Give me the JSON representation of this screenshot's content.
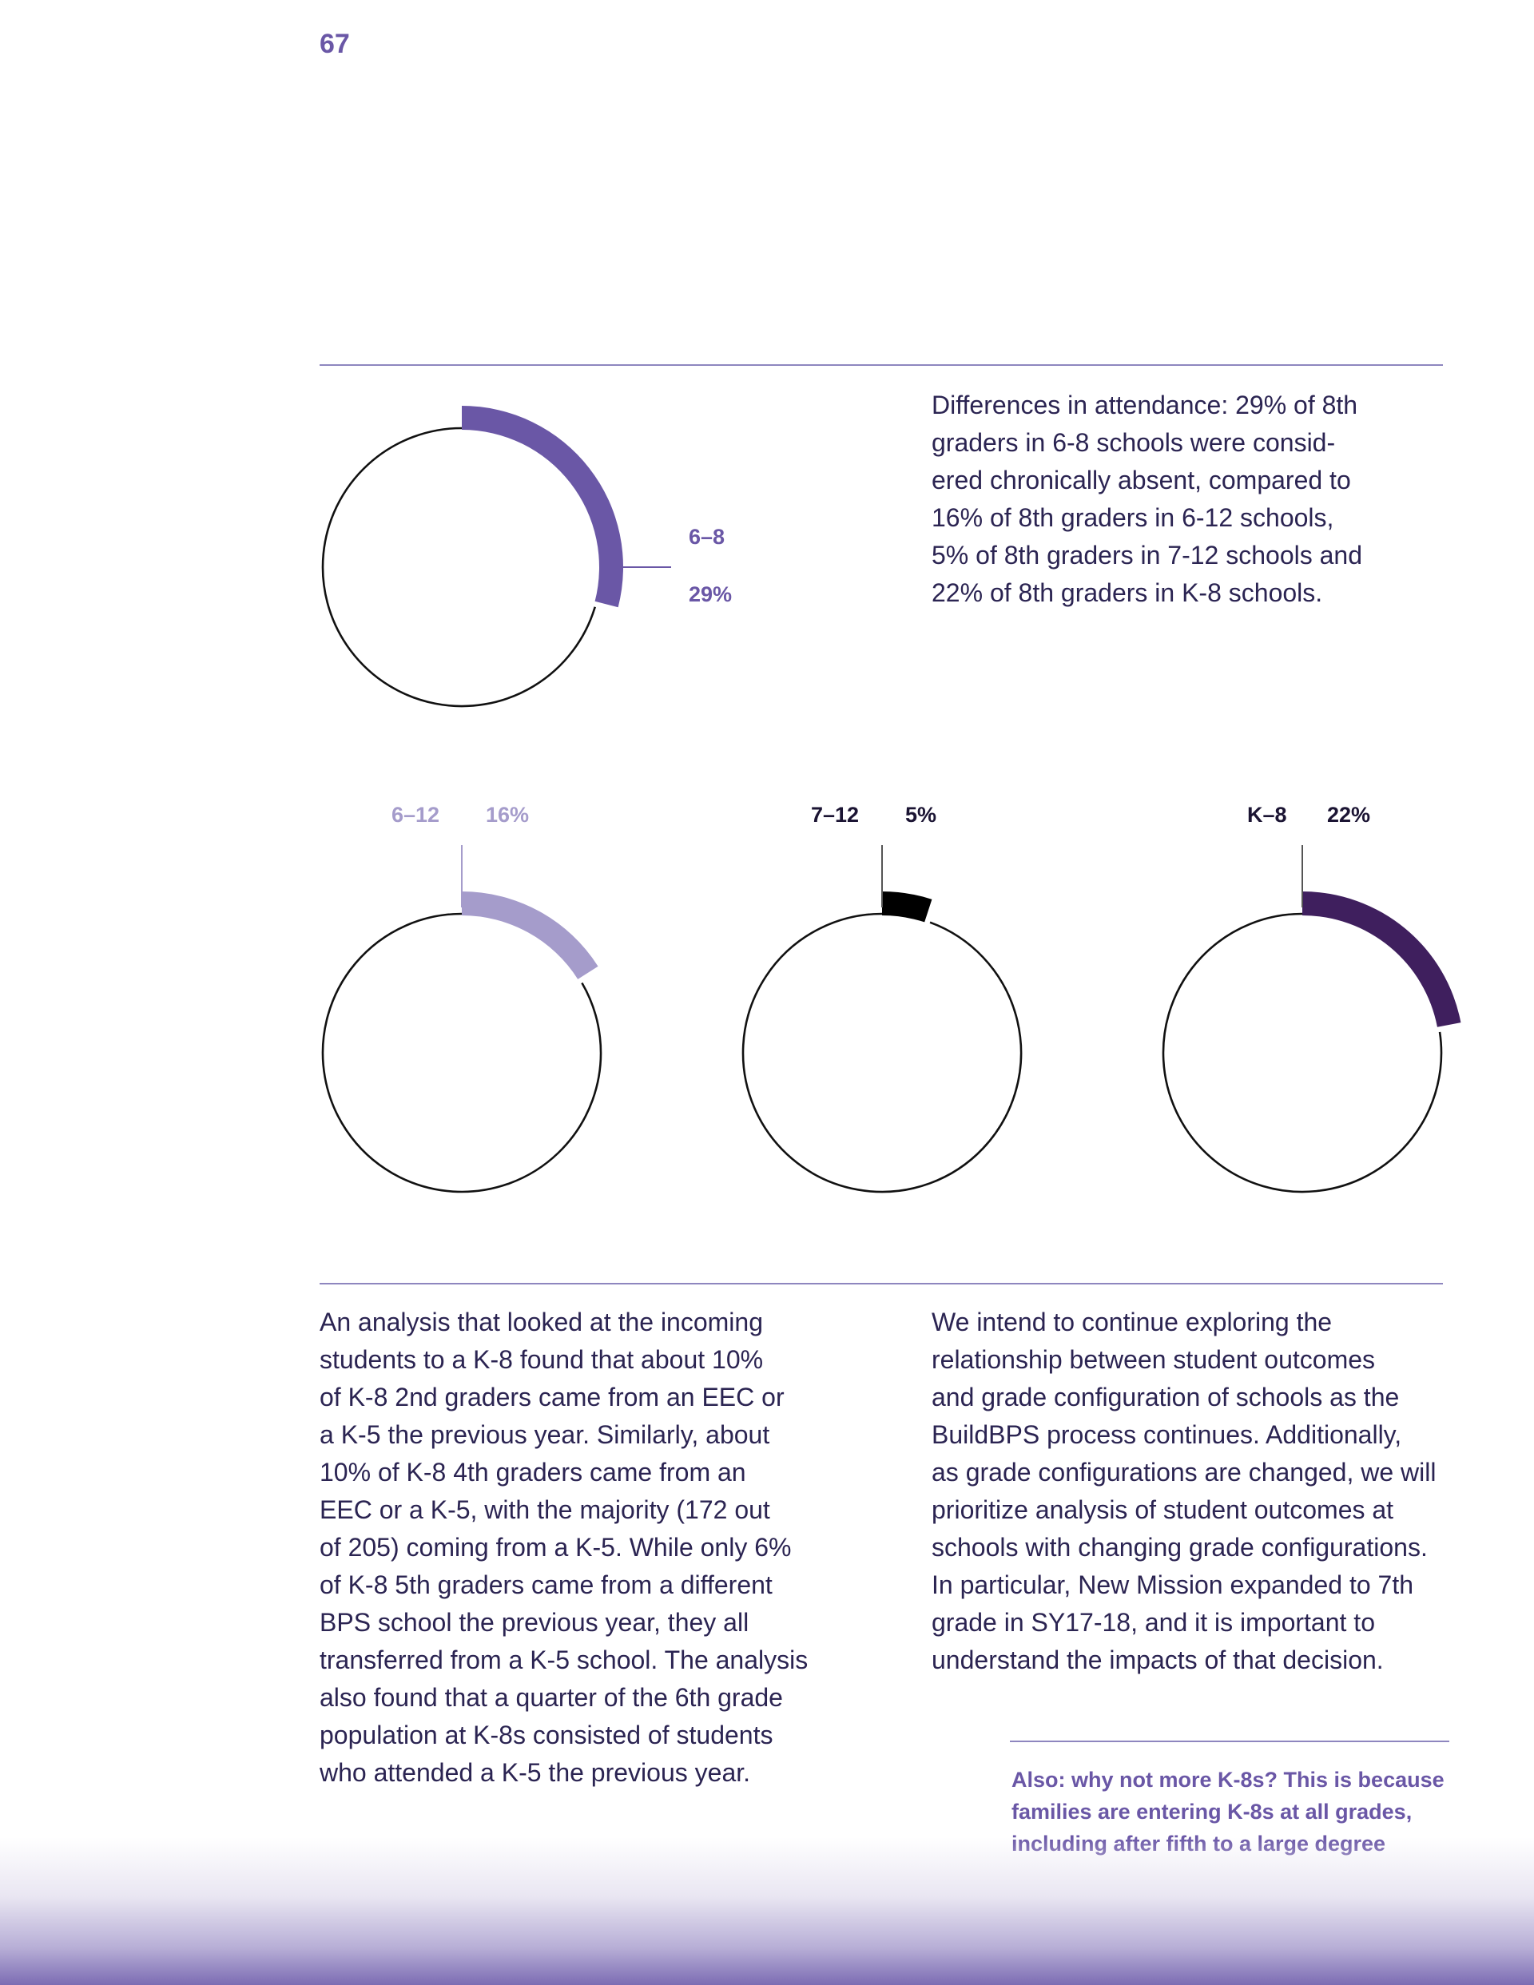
{
  "page": {
    "number": "67"
  },
  "intro": {
    "text": "Differences in attendance: 29% of 8th\ngraders in 6-8 schools were consid-\nered chronically absent, compared to\n16% of 8th graders in 6-12 schools,\n5% of 8th graders in 7-12 schools and\n22% of 8th graders in K-8 schools."
  },
  "chart_data": [
    {
      "type": "pie",
      "category": "6–8",
      "label": "29%",
      "value": 29,
      "color": "#6a57a6"
    },
    {
      "type": "pie",
      "category": "6–12",
      "label": "16%",
      "value": 16,
      "color": "#a59ccb"
    },
    {
      "type": "pie",
      "category": "7–12",
      "label": "5%",
      "value": 5,
      "color": "#000000"
    },
    {
      "type": "pie",
      "category": "K–8",
      "label": "22%",
      "value": 22,
      "color": "#3f1f5e"
    }
  ],
  "columns": {
    "left": "An analysis that looked at the incoming\nstudents to a K-8 found that about 10%\nof K-8 2nd graders came from an EEC or\na K-5 the previous year. Similarly, about\n10% of K-8 4th graders came from an\nEEC or a K-5, with the majority (172 out\nof 205) coming from a K-5. While only 6%\nof K-8 5th graders came from a different\nBPS school the previous year, they all\ntransferred from a K-5 school. The analysis\nalso found that a quarter of the 6th grade\npopulation at K-8s consisted of students\nwho attended a K-5 the previous year.",
    "right": "We intend to continue exploring the\nrelationship between student outcomes\nand grade configuration of schools as the\nBuildBPS process continues. Additionally,\nas grade configurations are changed, we will\nprioritize analysis of student outcomes at\nschools with changing grade configurations.\nIn particular, New Mission expanded to 7th\ngrade in SY17-18, and it is important to\nunderstand the impacts of that decision."
  },
  "note": {
    "text": "Also: why not more K-8s? This is because\nfamilies are entering K-8s at all grades,\nincluding after fifth to a large degree"
  }
}
